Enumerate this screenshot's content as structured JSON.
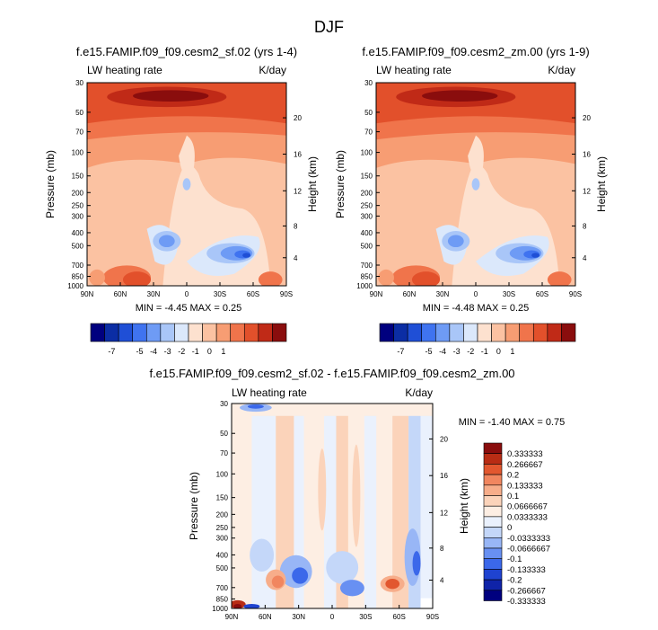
{
  "title": "DJF",
  "colors": {
    "full": [
      "#00007f",
      "#0b2da4",
      "#1f4fd6",
      "#3f73f0",
      "#6e9bf5",
      "#a9c6f8",
      "#dbe8fb",
      "#fde1cf",
      "#fbc2a2",
      "#f79d73",
      "#f0744b",
      "#e2502b",
      "#c02a17",
      "#8a0d0d"
    ],
    "diff": [
      "#00007f",
      "#0f23a8",
      "#1f43d0",
      "#3b68ea",
      "#6890f2",
      "#98b6f6",
      "#c4d7f9",
      "#eaf1fd",
      "#fdeee3",
      "#fbd3ba",
      "#f7ad8a",
      "#f1865f",
      "#e2572f",
      "#b82c14",
      "#8a0d0d"
    ]
  },
  "panels": [
    {
      "subtitle": "f.e15.FAMIP.f09_f09.cesm2_sf.02 (yrs 1-4)",
      "left_label": "LW heating rate",
      "right_label": "K/day",
      "stats": "MIN =  -4.45   MAX =   0.25"
    },
    {
      "subtitle": "f.e15.FAMIP.f09_f09.cesm2_zm.00 (yrs 1-9)",
      "left_label": "LW heating rate",
      "right_label": "K/day",
      "stats": "MIN =  -4.48   MAX =   0.25"
    },
    {
      "subtitle": "f.e15.FAMIP.f09_f09.cesm2_sf.02 - f.e15.FAMIP.f09_f09.cesm2_zm.00",
      "left_label": "LW heating rate",
      "right_label": "K/day",
      "stats": "MIN =  -1.40   MAX =   0.75"
    }
  ],
  "chart_data": [
    {
      "type": "heatmap",
      "title": "f.e15.FAMIP.f09_f09.cesm2_sf.02 (yrs 1-4)",
      "ylabel": "Pressure (mb)",
      "y2label": "Height (km)",
      "x_ticks": [
        "90N",
        "60N",
        "30N",
        "0",
        "30S",
        "60S",
        "90S"
      ],
      "y_ticks": [
        "30",
        "50",
        "70",
        "100",
        "150",
        "200",
        "250",
        "300",
        "400",
        "500",
        "700",
        "850",
        "1000"
      ],
      "y2_ticks": [
        "20",
        "16",
        "12",
        "8",
        "4"
      ],
      "colorbar_labels": [
        "-7",
        "-5",
        "-4",
        "-3",
        "-2",
        "-1",
        "0",
        "1"
      ],
      "min": -4.45,
      "max": 0.25
    },
    {
      "type": "heatmap",
      "title": "f.e15.FAMIP.f09_f09.cesm2_zm.00 (yrs 1-9)",
      "ylabel": "Pressure (mb)",
      "y2label": "Height (km)",
      "x_ticks": [
        "90N",
        "60N",
        "30N",
        "0",
        "30S",
        "60S",
        "90S"
      ],
      "y_ticks": [
        "30",
        "50",
        "70",
        "100",
        "150",
        "200",
        "250",
        "300",
        "400",
        "500",
        "700",
        "850",
        "1000"
      ],
      "y2_ticks": [
        "20",
        "16",
        "12",
        "8",
        "4"
      ],
      "colorbar_labels": [
        "-7",
        "-5",
        "-4",
        "-3",
        "-2",
        "-1",
        "0",
        "1"
      ],
      "min": -4.48,
      "max": 0.25
    },
    {
      "type": "heatmap",
      "title": "f.e15.FAMIP.f09_f09.cesm2_sf.02 - f.e15.FAMIP.f09_f09.cesm2_zm.00",
      "ylabel": "Pressure (mb)",
      "y2label": "Height (km)",
      "x_ticks": [
        "90N",
        "60N",
        "30N",
        "0",
        "30S",
        "60S",
        "90S"
      ],
      "y_ticks": [
        "30",
        "50",
        "70",
        "100",
        "150",
        "200",
        "250",
        "300",
        "400",
        "500",
        "700",
        "850",
        "1000"
      ],
      "y2_ticks": [
        "20",
        "16",
        "12",
        "8",
        "4"
      ],
      "colorbar_labels": [
        "0.333333",
        "0.266667",
        "0.2",
        "0.133333",
        "0.1",
        "0.0666667",
        "0.0333333",
        "0",
        "-0.0333333",
        "-0.0666667",
        "-0.1",
        "-0.133333",
        "-0.2",
        "-0.266667",
        "-0.333333"
      ],
      "min": -1.4,
      "max": 0.75
    }
  ]
}
